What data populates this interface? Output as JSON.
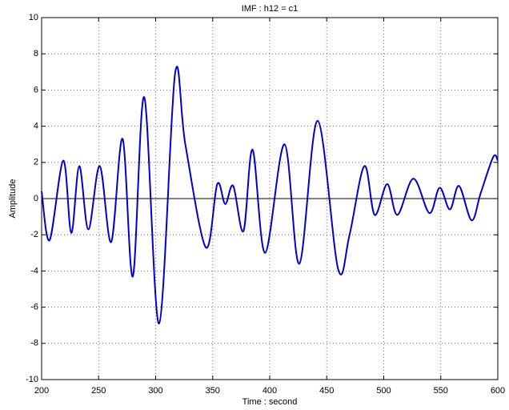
{
  "chart_data": {
    "type": "line",
    "title": "IMF : h12 = c1",
    "x_label": "Time : second",
    "y_label": "Amplitude",
    "x": [
      200,
      207,
      219,
      226,
      233,
      241,
      251,
      261,
      271,
      280,
      290,
      303,
      317,
      326,
      344,
      354,
      361,
      368,
      377,
      385,
      396,
      413,
      426,
      442,
      460,
      470,
      483,
      492,
      503,
      512,
      526,
      540,
      549,
      558,
      566,
      577,
      585,
      596,
      600
    ],
    "series": [
      {
        "name": "c1",
        "color": "#0000d0",
        "values": [
          0.4,
          -2.3,
          2.1,
          -1.9,
          1.8,
          -1.7,
          1.8,
          -2.4,
          3.3,
          -4.3,
          5.6,
          -6.9,
          6.9,
          3.0,
          -2.7,
          0.8,
          -0.3,
          0.7,
          -1.8,
          2.7,
          -3.0,
          3.0,
          -3.6,
          4.3,
          -3.9,
          -2.0,
          1.8,
          -0.9,
          0.8,
          -0.9,
          1.1,
          -0.8,
          0.6,
          -0.6,
          0.7,
          -1.2,
          0.3,
          2.3,
          2.1
        ]
      }
    ],
    "reference_line": 0,
    "xlim": [
      200,
      600
    ],
    "ylim": [
      -10,
      10
    ],
    "xticks": [
      200,
      250,
      300,
      350,
      400,
      450,
      500,
      550,
      600
    ],
    "yticks": [
      -10,
      -8,
      -6,
      -4,
      -2,
      0,
      2,
      4,
      6,
      8,
      10
    ],
    "grid": true
  }
}
